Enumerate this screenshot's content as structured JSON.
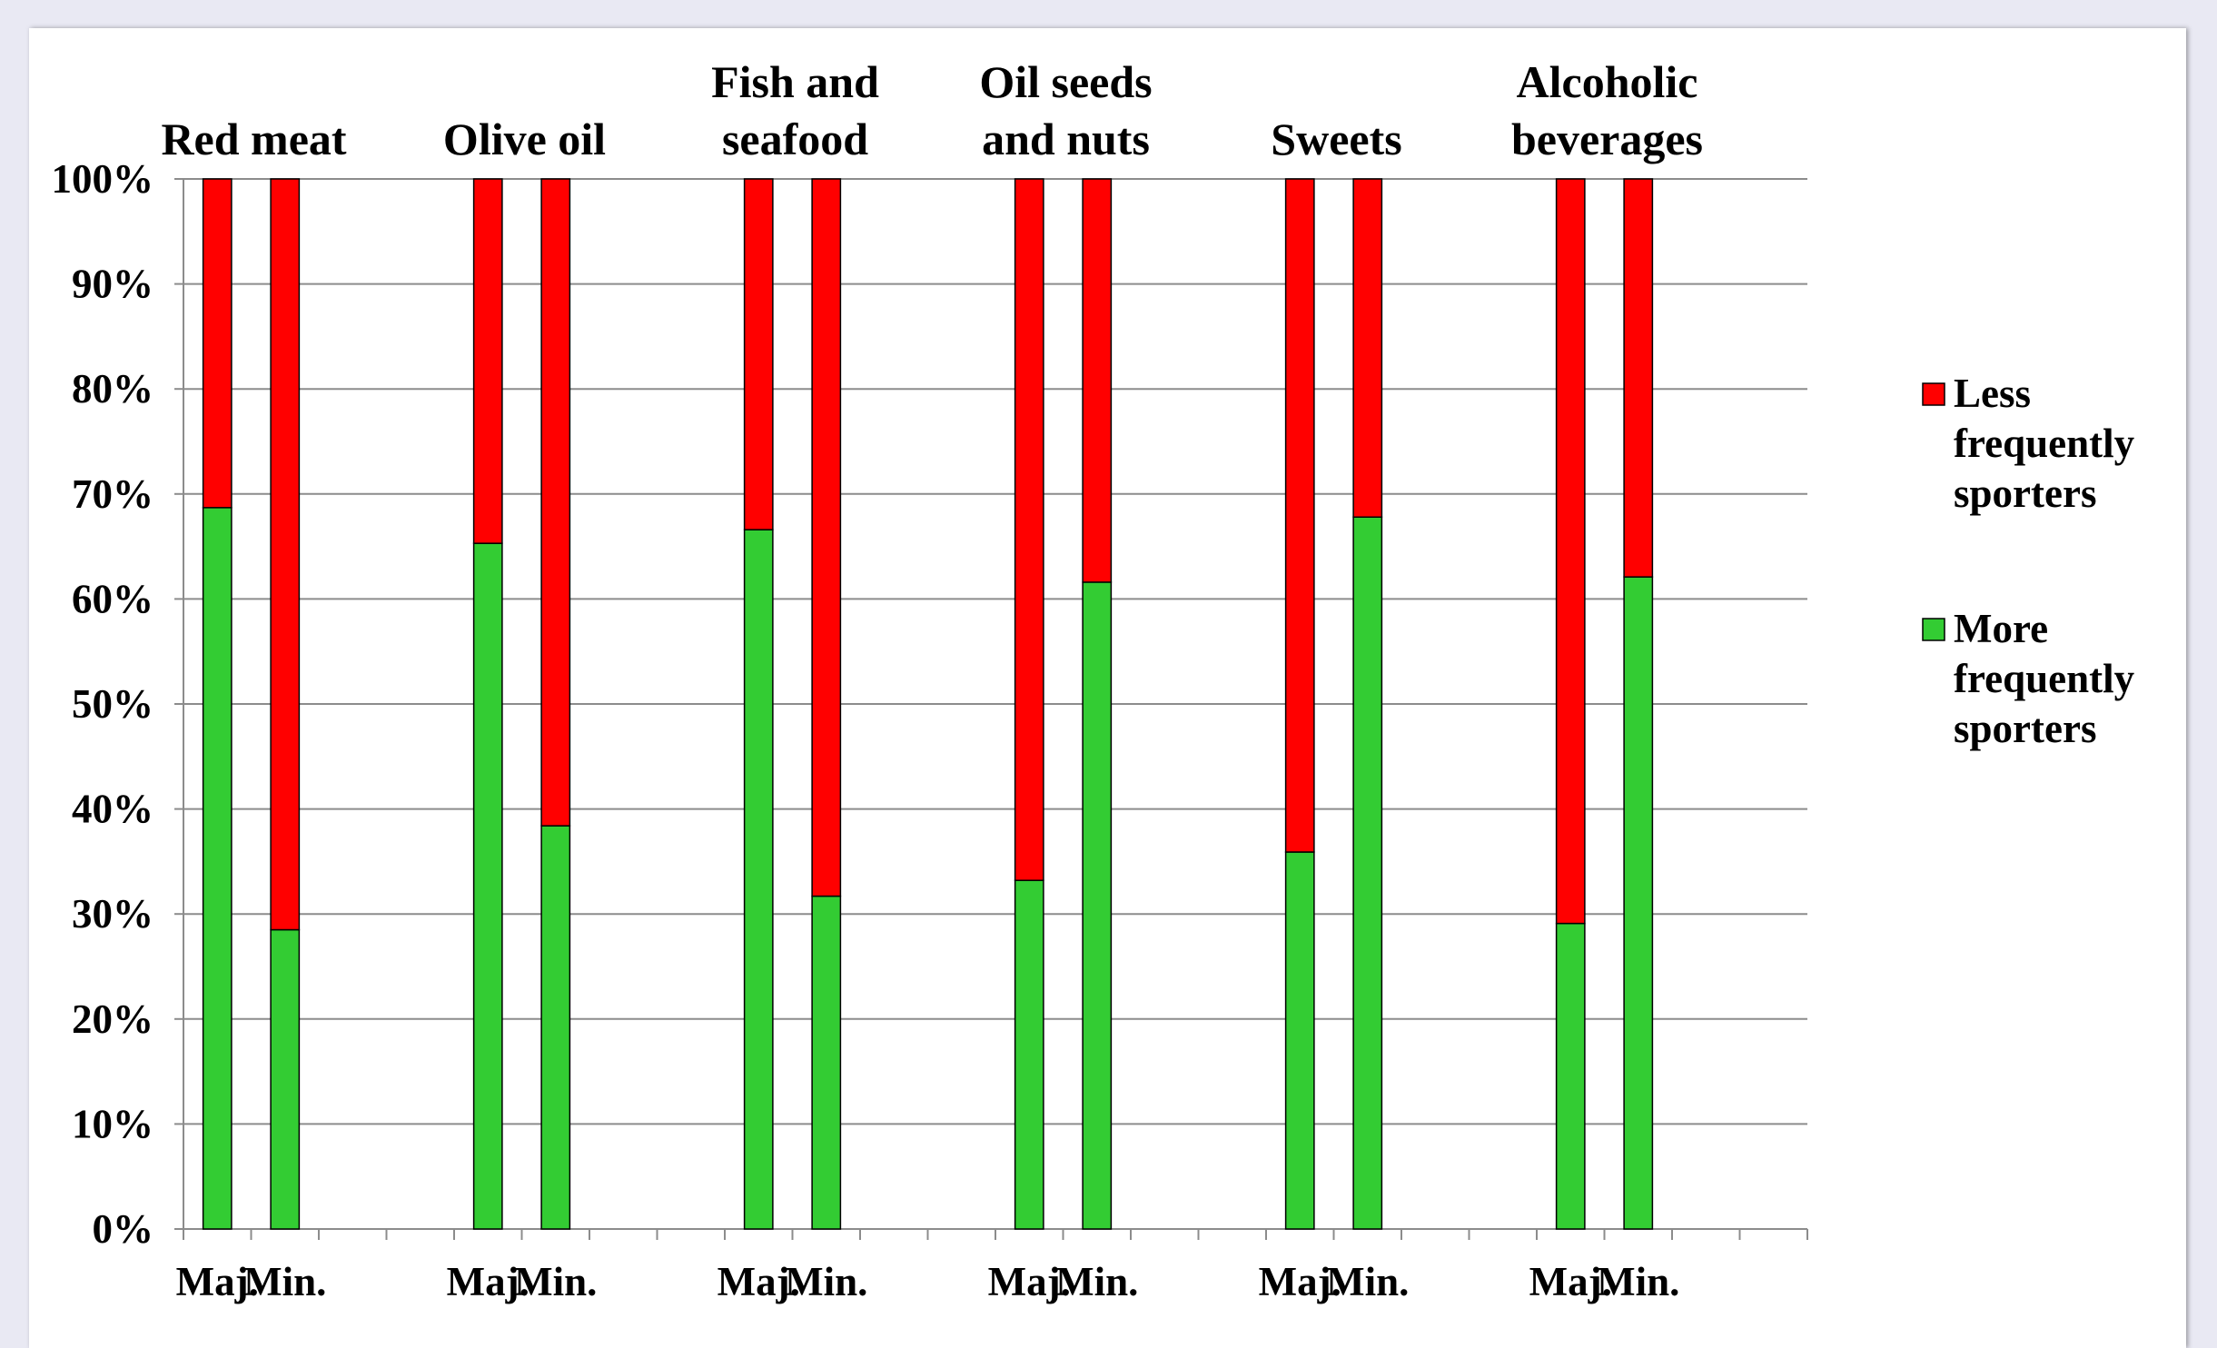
{
  "chart_data": {
    "type": "bar",
    "stacked": true,
    "percent_stacked": true,
    "categories": [
      "Red meat",
      "Olive oil",
      "Fish and seafood",
      "Oil seeds and nuts",
      "Sweets",
      "Alcoholic beverages"
    ],
    "category_title_lines": [
      [
        "Red meat"
      ],
      [
        "Olive oil"
      ],
      [
        "Fish and",
        "seafood"
      ],
      [
        "Oil seeds",
        "and nuts"
      ],
      [
        "Sweets"
      ],
      [
        "Alcoholic",
        "beverages"
      ]
    ],
    "bar_labels": [
      "Maj.",
      "Min."
    ],
    "series": [
      {
        "name": "More frequently sporters",
        "legend_lines": [
          "More",
          "frequently",
          "sporters"
        ],
        "color": "#33cc33",
        "values": [
          [
            68.7,
            28.5
          ],
          [
            65.3,
            38.4
          ],
          [
            66.6,
            31.7
          ],
          [
            33.2,
            61.6
          ],
          [
            35.9,
            67.8
          ],
          [
            29.1,
            62.1
          ]
        ]
      },
      {
        "name": "Less frequently sporters",
        "legend_lines": [
          "Less",
          "frequently",
          "sporters"
        ],
        "color": "#ff0000",
        "values": [
          [
            31.3,
            71.5
          ],
          [
            34.7,
            61.6
          ],
          [
            33.4,
            68.3
          ],
          [
            66.8,
            38.4
          ],
          [
            64.1,
            32.2
          ],
          [
            70.9,
            37.9
          ]
        ]
      }
    ],
    "y_ticks": [
      "0%",
      "10%",
      "20%",
      "30%",
      "40%",
      "50%",
      "60%",
      "70%",
      "80%",
      "90%",
      "100%"
    ],
    "ylim": [
      0,
      100
    ],
    "grid": true,
    "legend_position": "right",
    "title": "",
    "xlabel": "",
    "ylabel": ""
  }
}
